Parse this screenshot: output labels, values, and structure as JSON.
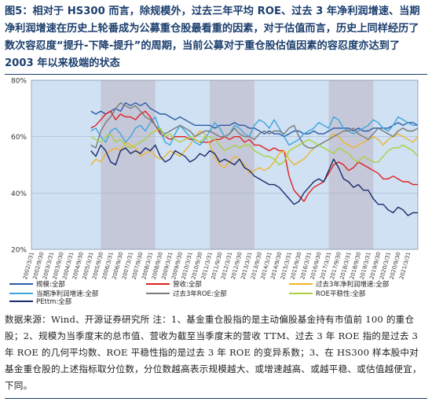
{
  "figure": {
    "title": "图5：相对于 HS300 而言，除规模外，过去三年平均 ROE、过去 3 年净利润增速、当期净利润增速在历史上轮番成为公募重仓股最看重的因素，对于估值而言，历史上同样经历了数次容忍度“提升-下降-提升”的周期，当前公募对于重仓股估值因素的容忍度亦达到了 2003 年以来极端的状态",
    "source_note": "数据来源：Wind、开源证券研究所  注：1、基金重仓股指的是主动偏股基金持有市值前 100 的重仓股；2、规模为当季度末的总市值、营收为截至当季度末的营收 TTM、过去 3 年 ROE 指的是过去 3 年 ROE 的几何平均数、ROE 平稳性指的是过去 3 年 ROE 的变异系数；3、在 HS300 样本股中对基金重仓股的上述指标取分位数，分位数越高表示规模越大、或增速越高、或越平稳、或估值越便宜，下同。"
  },
  "colors": {
    "plot_bg": "#cfe1f2",
    "shade_band": "#c5c8d9",
    "grid": "#a9b8cc",
    "axis_text": "#333333"
  },
  "chart_data": {
    "type": "line",
    "xlabel": "",
    "ylabel": "",
    "ylim": [
      20,
      80
    ],
    "yticks": [
      "20%",
      "40%",
      "60%",
      "80%"
    ],
    "x_tick_labels": [
      "2002/3/31",
      "2002/9/30",
      "2003/3/31",
      "2003/9/30",
      "2004/3/31",
      "2004/9/30",
      "2005/3/31",
      "2005/9/30",
      "2006/3/31",
      "2006/9/30",
      "2007/3/31",
      "2007/9/30",
      "2008/3/31",
      "2008/9/30",
      "2009/3/31",
      "2009/9/30",
      "2010/3/31",
      "2010/9/30",
      "2011/3/31",
      "2011/9/30",
      "2012/3/31",
      "2012/9/30",
      "2013/3/31",
      "2013/9/30",
      "2014/3/31",
      "2014/9/30",
      "2015/3/31",
      "2015/9/30",
      "2016/3/31",
      "2016/9/30",
      "2017/3/31",
      "2017/9/30",
      "2018/3/31",
      "2018/9/30",
      "2019/3/31",
      "2019/9/30",
      "2020/3/31",
      "2020/9/30",
      "2021/3/31"
    ],
    "shaded_ranges": [
      [
        2005.5,
        2008.25
      ],
      [
        2011.0,
        2013.25
      ],
      [
        2017.0,
        2019.25
      ]
    ],
    "x": [
      2005.0,
      2005.25,
      2005.5,
      2005.75,
      2006.0,
      2006.25,
      2006.5,
      2006.75,
      2007.0,
      2007.25,
      2007.5,
      2007.75,
      2008.0,
      2008.25,
      2008.5,
      2008.75,
      2009.0,
      2009.25,
      2009.5,
      2009.75,
      2010.0,
      2010.25,
      2010.5,
      2010.75,
      2011.0,
      2011.25,
      2011.5,
      2011.75,
      2012.0,
      2012.25,
      2012.5,
      2012.75,
      2013.0,
      2013.25,
      2013.5,
      2013.75,
      2014.0,
      2014.25,
      2014.5,
      2014.75,
      2015.0,
      2015.25,
      2015.5,
      2015.75,
      2016.0,
      2016.25,
      2016.5,
      2016.75,
      2017.0,
      2017.25,
      2017.5,
      2017.75,
      2018.0,
      2018.25,
      2018.5,
      2018.75,
      2019.0,
      2019.25,
      2019.5,
      2019.75,
      2020.0,
      2020.25,
      2020.5,
      2020.75,
      2021.0,
      2021.25,
      2021.5
    ],
    "series": [
      {
        "name": "规模:全部",
        "color": "#2a5aa8",
        "values": [
          69,
          68,
          69,
          68,
          69,
          70,
          69,
          72,
          71,
          72,
          71,
          72,
          70,
          69,
          68,
          68,
          67,
          66,
          67,
          66,
          65,
          64,
          64,
          64,
          64,
          63,
          64,
          64,
          64,
          65,
          64,
          64,
          63,
          63,
          62,
          61,
          62,
          61,
          61,
          60,
          61,
          62,
          62,
          61,
          61,
          62,
          61,
          61,
          62,
          63,
          63,
          63,
          63,
          62,
          63,
          62,
          62,
          63,
          63,
          63,
          63,
          64,
          65,
          64,
          65,
          65,
          64
        ]
      },
      {
        "name": "营收:全部",
        "color": "#e02020",
        "values": [
          63,
          64,
          66,
          68,
          69,
          66,
          68,
          67,
          67,
          66,
          68,
          69,
          67,
          64,
          61,
          60,
          59,
          60,
          60,
          60,
          59,
          59,
          58,
          58,
          58,
          59,
          59,
          60,
          59,
          60,
          60,
          58,
          59,
          57,
          57,
          56,
          55,
          56,
          55,
          55,
          46,
          41,
          39,
          37,
          40,
          42,
          43,
          44,
          47,
          50,
          51,
          50,
          48,
          49,
          51,
          50,
          49,
          48,
          47,
          45,
          45,
          46,
          45,
          44,
          44,
          43,
          43
        ]
      },
      {
        "name": "过去3年净利润增速:全部",
        "color": "#f0b428",
        "values": [
          50,
          52,
          51,
          54,
          55,
          56,
          55,
          58,
          57,
          56,
          53,
          54,
          55,
          53,
          52,
          53,
          55,
          54,
          53,
          55,
          57,
          60,
          62,
          61,
          57,
          53,
          50,
          49,
          51,
          53,
          52,
          50,
          47,
          48,
          49,
          48,
          49,
          51,
          54,
          55,
          52,
          50,
          51,
          52,
          54,
          56,
          57,
          58,
          59,
          61,
          60,
          58,
          57,
          56,
          57,
          58,
          59,
          60,
          59,
          57,
          59,
          60,
          61,
          60,
          59,
          58,
          60
        ]
      },
      {
        "name": "当期净利润增速:全部",
        "color": "#3da5dc",
        "values": [
          62,
          63,
          60,
          58,
          62,
          63,
          61,
          58,
          60,
          63,
          64,
          62,
          65,
          67,
          62,
          58,
          57,
          61,
          64,
          62,
          60,
          58,
          57,
          59,
          62,
          65,
          63,
          60,
          61,
          64,
          63,
          61,
          60,
          64,
          66,
          65,
          63,
          66,
          63,
          60,
          57,
          58,
          59,
          61,
          62,
          63,
          65,
          64,
          63,
          67,
          66,
          63,
          62,
          61,
          62,
          63,
          64,
          66,
          65,
          63,
          62,
          64,
          67,
          66,
          65,
          64,
          64
        ]
      },
      {
        "name": "过去3年ROE:全部",
        "color": "#7a7a7a",
        "values": [
          57,
          56,
          62,
          65,
          67,
          70,
          72,
          71,
          70,
          71,
          69,
          67,
          66,
          64,
          62,
          61,
          62,
          63,
          64,
          63,
          62,
          60,
          61,
          62,
          62,
          61,
          60,
          60,
          61,
          63,
          61,
          60,
          60,
          59,
          61,
          62,
          61,
          62,
          62,
          61,
          63,
          64,
          60,
          57,
          56,
          56,
          57,
          58,
          59,
          60,
          61,
          62,
          62,
          63,
          61,
          60,
          59,
          61,
          63,
          62,
          61,
          60,
          62,
          63,
          62,
          62,
          63
        ]
      },
      {
        "name": "ROE平稳性:全部",
        "color": "#a9d23c",
        "values": [
          60,
          59,
          58,
          60,
          61,
          58,
          59,
          57,
          56,
          57,
          58,
          59,
          61,
          62,
          63,
          60,
          61,
          59,
          58,
          59,
          60,
          59,
          58,
          60,
          60,
          59,
          57,
          55,
          56,
          57,
          56,
          57,
          57,
          55,
          54,
          53,
          53,
          52,
          50,
          51,
          55,
          56,
          57,
          58,
          59,
          58,
          57,
          56,
          55,
          54,
          56,
          55,
          54,
          52,
          51,
          53,
          52,
          51,
          51,
          53,
          55,
          56,
          56,
          57,
          56,
          55,
          53
        ]
      },
      {
        "name": "PEttm:全部",
        "color": "#1a2b6a",
        "values": [
          55,
          53,
          57,
          55,
          51,
          50,
          55,
          56,
          54,
          55,
          54,
          56,
          55,
          57,
          53,
          51,
          52,
          55,
          54,
          53,
          51,
          52,
          54,
          53,
          55,
          54,
          51,
          52,
          51,
          50,
          52,
          49,
          48,
          46,
          45,
          44,
          43,
          43,
          42,
          40,
          38,
          36,
          37,
          40,
          42,
          44,
          45,
          44,
          48,
          52,
          49,
          45,
          44,
          42,
          43,
          41,
          41,
          38,
          36,
          36,
          34,
          33,
          35,
          34,
          32,
          33,
          33
        ]
      }
    ],
    "legend": [
      {
        "label": "规模:全部",
        "series": 0
      },
      {
        "label": "营收:全部",
        "series": 1
      },
      {
        "label": "过去3年净利润增速:全部",
        "series": 2
      },
      {
        "label": "当期净利润增速:全部",
        "series": 3
      },
      {
        "label": "过去3年ROE:全部",
        "series": 4
      },
      {
        "label": "ROE平稳性:全部",
        "series": 5
      },
      {
        "label": "PEttm:全部",
        "series": 6
      }
    ],
    "legend_position": "bottom",
    "grid": true
  }
}
